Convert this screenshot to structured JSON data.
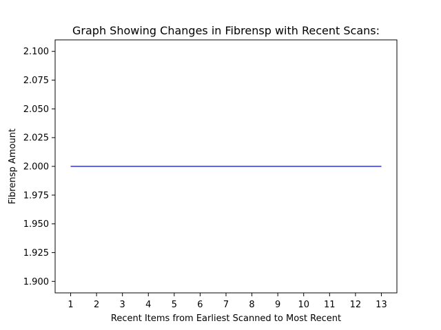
{
  "chart_data": {
    "type": "line",
    "title": "Graph Showing Changes in Fibrensp with Recent Scans:",
    "xlabel": "Recent Items from Earliest Scanned to Most Recent",
    "ylabel": "Fibrensp Amount",
    "x": [
      1,
      2,
      3,
      4,
      5,
      6,
      7,
      8,
      9,
      10,
      11,
      12,
      13
    ],
    "series": [
      {
        "values": [
          2,
          2,
          2,
          2,
          2,
          2,
          2,
          2,
          2,
          2,
          2,
          2,
          2
        ],
        "color": "#0000ff"
      }
    ],
    "xlim": [
      0.4,
      13.6
    ],
    "ylim": [
      1.89,
      2.11
    ],
    "xticks": [
      "1",
      "2",
      "3",
      "4",
      "5",
      "6",
      "7",
      "8",
      "9",
      "10",
      "11",
      "12",
      "13"
    ],
    "yticks": [
      "1.900",
      "1.925",
      "1.950",
      "1.975",
      "2.000",
      "2.025",
      "2.050",
      "2.075",
      "2.100"
    ],
    "grid": false,
    "legend": "none"
  }
}
